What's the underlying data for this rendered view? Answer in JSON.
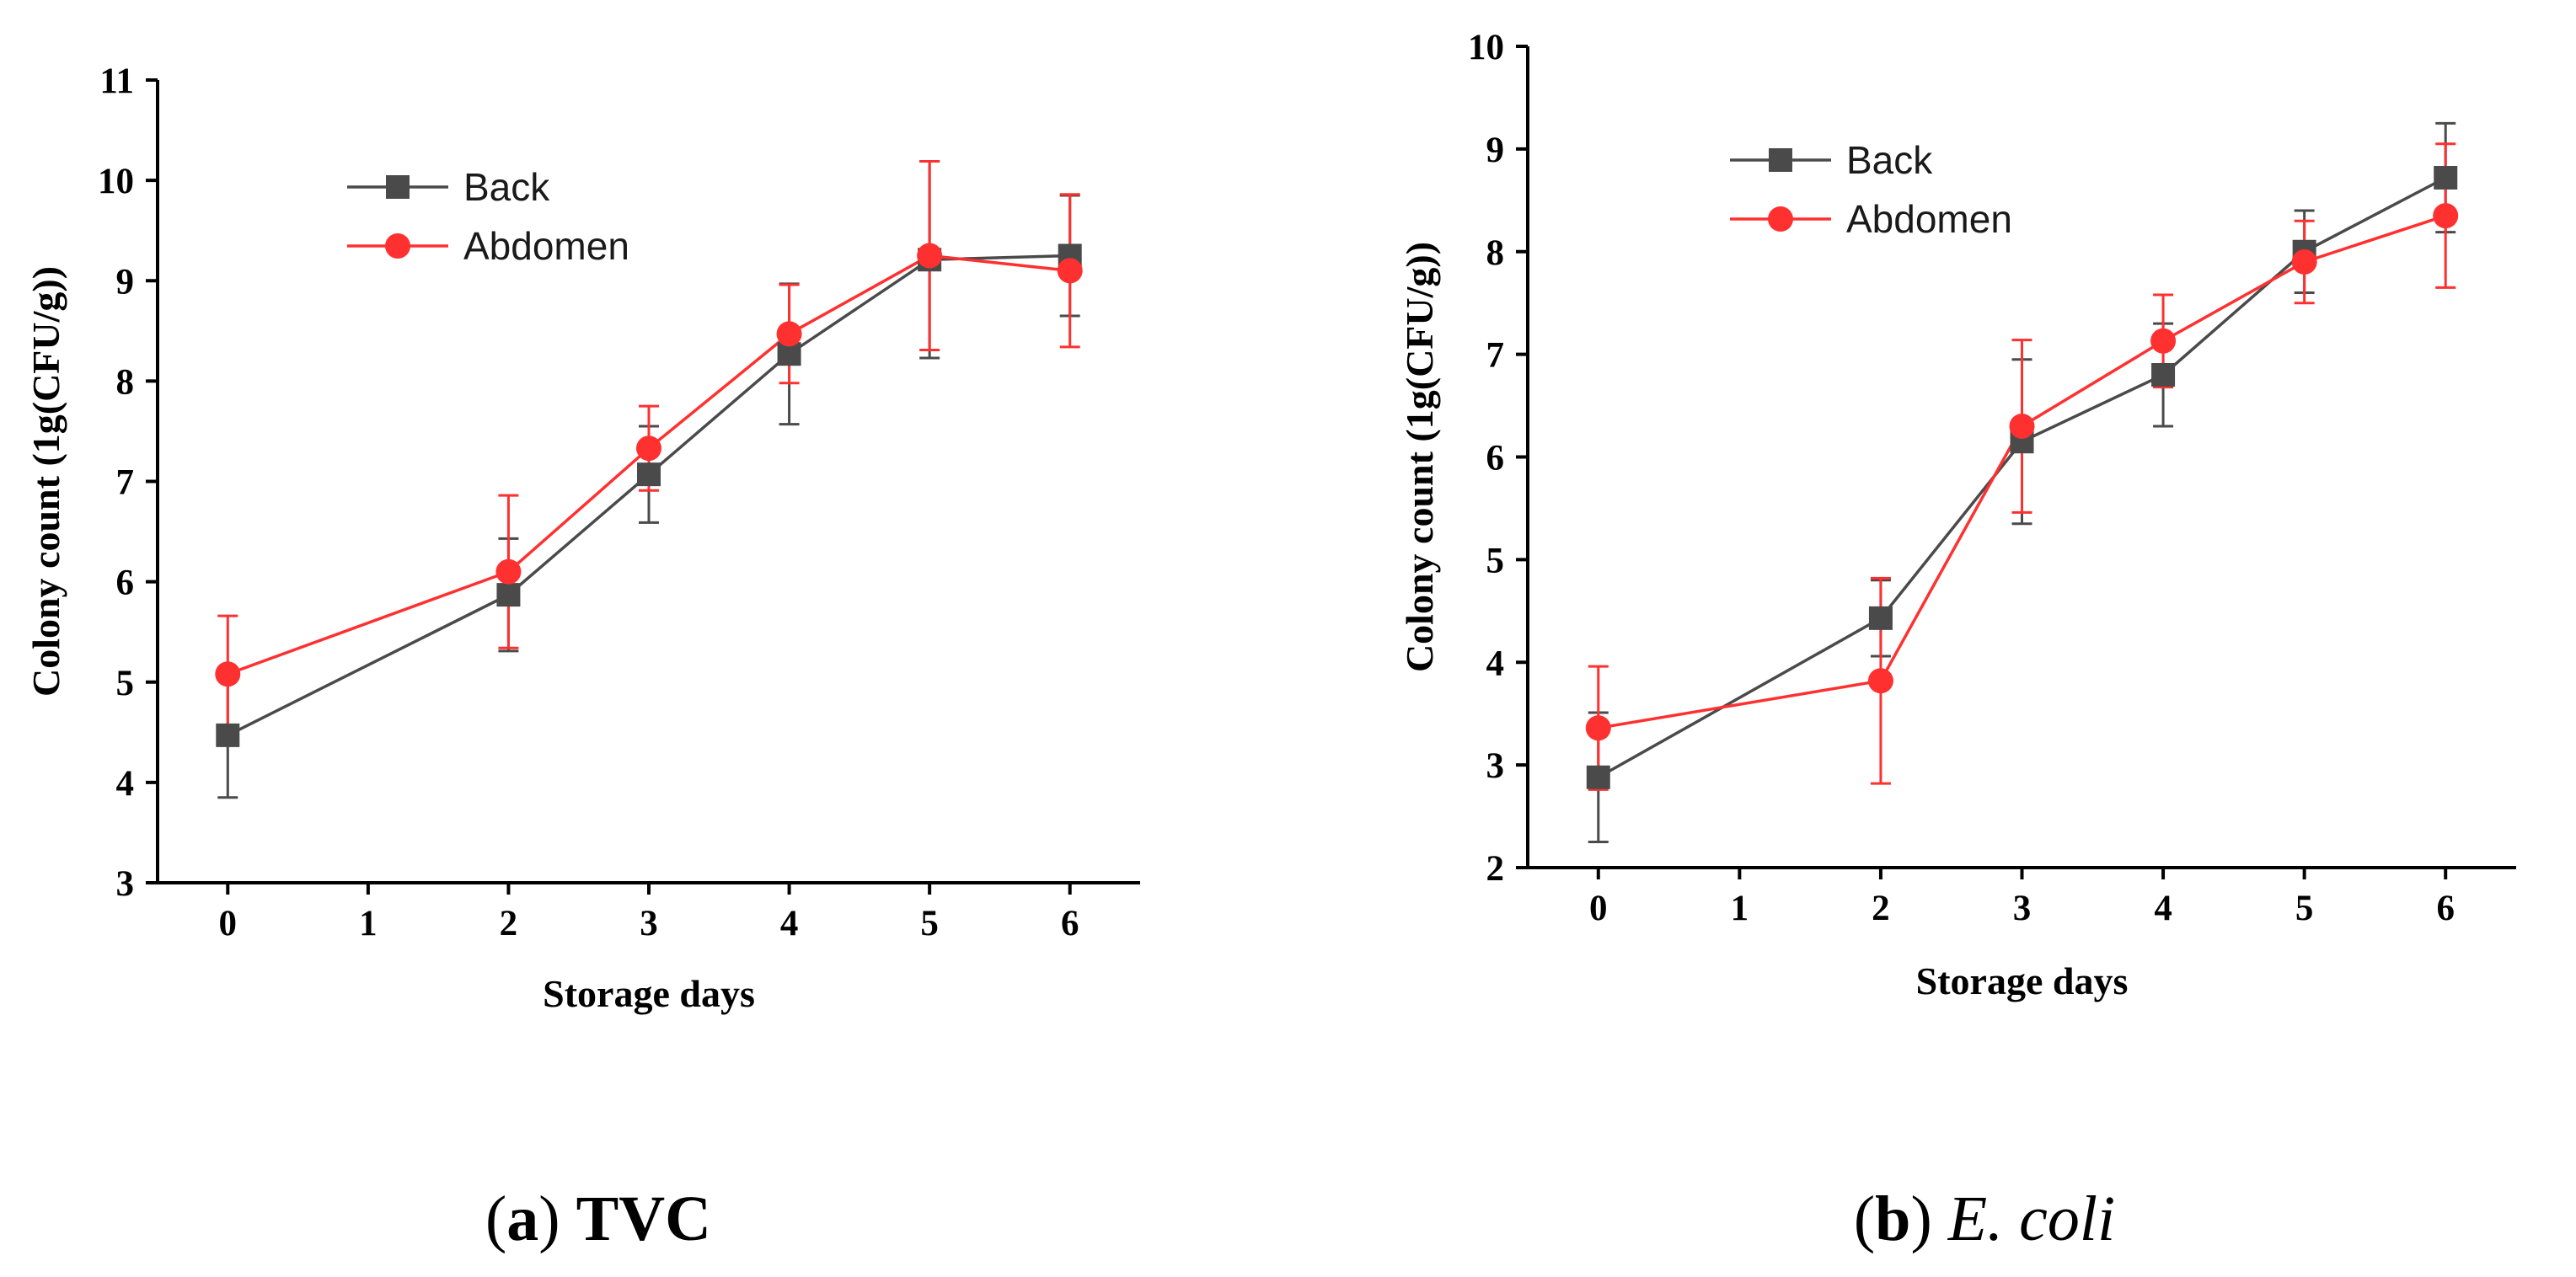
{
  "chart_data": [
    {
      "type": "line",
      "title": "",
      "xlabel": "Storage days",
      "ylabel": "Colony count (1g(CFU/g))",
      "xlim": [
        -0.5,
        6.5
      ],
      "ylim": [
        3,
        11
      ],
      "xticks": [
        0,
        1,
        2,
        3,
        4,
        5,
        6
      ],
      "yticks": [
        3,
        4,
        5,
        6,
        7,
        8,
        9,
        10,
        11
      ],
      "legend_position": "top-left",
      "caption": {
        "label": "a",
        "text": "TVC"
      },
      "series": [
        {
          "name": "Back",
          "color": "#4a4a4a",
          "marker": "square",
          "x": [
            0,
            2,
            3,
            4,
            5,
            6
          ],
          "y": [
            4.47,
            5.87,
            7.07,
            8.27,
            9.21,
            9.25
          ],
          "err": [
            0.62,
            0.56,
            0.48,
            0.7,
            0.98,
            0.6
          ]
        },
        {
          "name": "Abdomen",
          "color": "#ff3030",
          "marker": "circle",
          "x": [
            0,
            2,
            3,
            4,
            5,
            6
          ],
          "y": [
            5.08,
            6.1,
            7.33,
            8.47,
            9.25,
            9.1
          ],
          "err": [
            0.58,
            0.76,
            0.42,
            0.49,
            0.94,
            0.76
          ]
        }
      ]
    },
    {
      "type": "line",
      "title": "",
      "xlabel": "Storage days",
      "ylabel": "Colony count (1g(CFU/g))",
      "xlim": [
        -0.5,
        6.5
      ],
      "ylim": [
        2,
        10
      ],
      "xticks": [
        0,
        1,
        2,
        3,
        4,
        5,
        6
      ],
      "yticks": [
        2,
        3,
        4,
        5,
        6,
        7,
        8,
        9,
        10
      ],
      "legend_position": "top-left",
      "caption": {
        "label": "b",
        "text": "E. coli"
      },
      "series": [
        {
          "name": "Back",
          "color": "#4a4a4a",
          "marker": "square",
          "x": [
            0,
            2,
            3,
            4,
            5,
            6
          ],
          "y": [
            2.88,
            4.43,
            6.15,
            6.8,
            8.0,
            8.72
          ],
          "err": [
            0.63,
            0.37,
            0.8,
            0.5,
            0.4,
            0.53
          ]
        },
        {
          "name": "Abdomen",
          "color": "#ff3030",
          "marker": "circle",
          "x": [
            0,
            2,
            3,
            4,
            5,
            6
          ],
          "y": [
            3.36,
            3.82,
            6.3,
            7.13,
            7.9,
            8.35
          ],
          "err": [
            0.6,
            1.0,
            0.84,
            0.45,
            0.4,
            0.7
          ]
        }
      ]
    }
  ]
}
